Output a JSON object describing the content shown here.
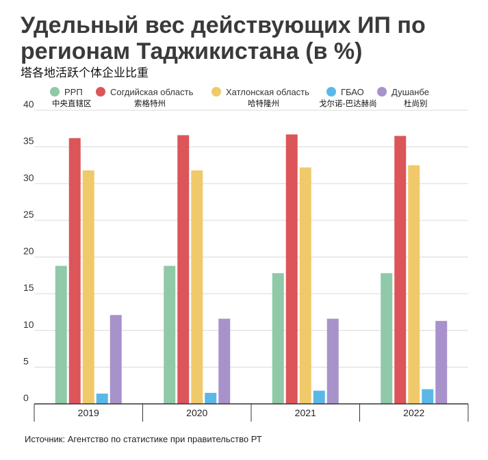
{
  "chart_data": {
    "type": "bar",
    "title": "Удельный вес действующих ИП по регионам Таджикистана (в %)",
    "subtitle": "塔各地活跃个体企业比重",
    "categories": [
      "2019",
      "2020",
      "2021",
      "2022"
    ],
    "series": [
      {
        "name": "РРП",
        "name_cn": "中央直辖区",
        "color": "#8fc9a8",
        "values": [
          18.8,
          18.8,
          17.8,
          17.8
        ]
      },
      {
        "name": "Согдийская область",
        "name_cn": "索格特州",
        "color": "#dc5559",
        "values": [
          36.2,
          36.6,
          36.7,
          36.5
        ]
      },
      {
        "name": "Хатлонская область",
        "name_cn": "哈特隆州",
        "color": "#f0c96a",
        "values": [
          31.8,
          31.8,
          32.2,
          32.5
        ]
      },
      {
        "name": "ГБАО",
        "name_cn": "戈尔诺-巴达赫尚",
        "color": "#5bb8e6",
        "values": [
          1.4,
          1.5,
          1.8,
          2.0
        ]
      },
      {
        "name": "Душанбе",
        "name_cn": "杜尚别",
        "color": "#a792cb",
        "values": [
          12.1,
          11.6,
          11.6,
          11.3
        ]
      }
    ],
    "ylim": [
      0,
      40
    ],
    "yticks": [
      0,
      5,
      10,
      15,
      20,
      25,
      30,
      35,
      40
    ],
    "xlabel": "",
    "ylabel": "",
    "grid": true,
    "legend": "top"
  },
  "source": "Источник: Агентство по статистике при правительство РТ"
}
